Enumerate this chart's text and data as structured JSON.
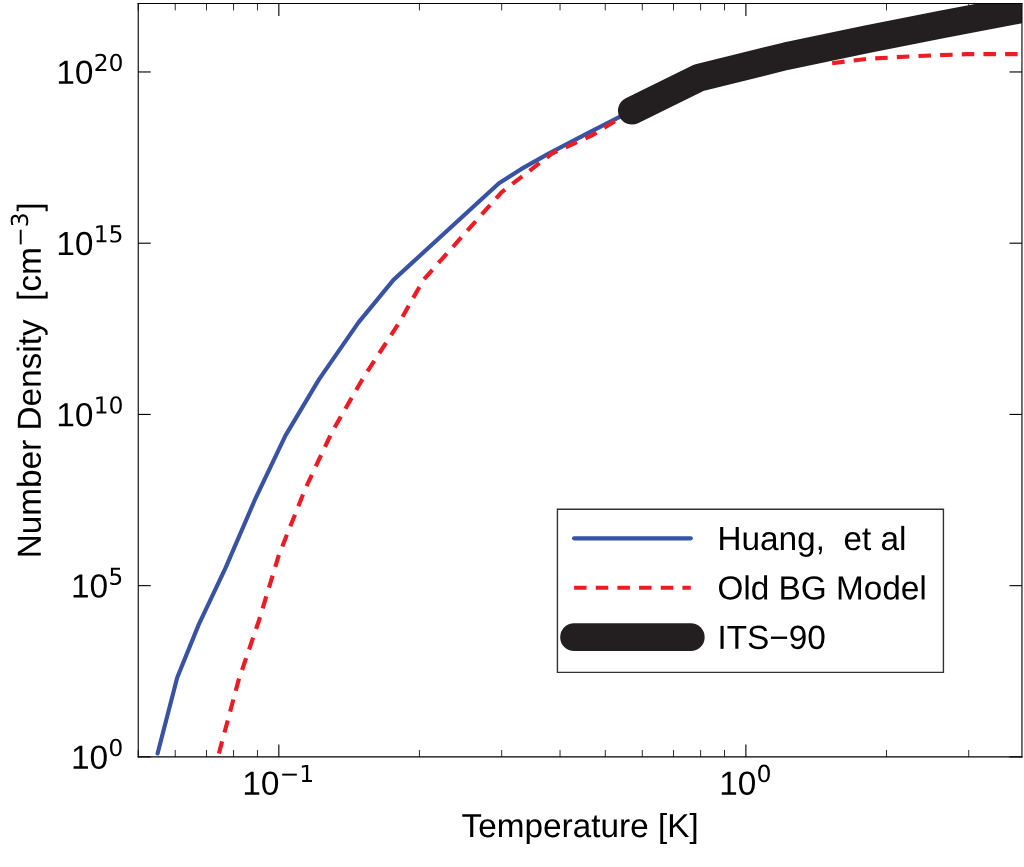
{
  "chart_data": {
    "type": "line",
    "xlabel": "Temperature [K]",
    "ylabel": "Number Density  [cm$^{−3}$]",
    "log": "xy",
    "xlim": [
      0.05,
      3.9
    ],
    "ylim": [
      1,
      1e+22
    ],
    "xticks": [
      {
        "value": 0.1,
        "label": "10$^{−1}$"
      },
      {
        "value": 1,
        "label": "10$^{0}$"
      }
    ],
    "yticks": [
      {
        "value": 1,
        "label": "10$^{0}$"
      },
      {
        "value": 100000,
        "label": "10$^{5}$"
      },
      {
        "value": 10000000000.0,
        "label": "10$^{10}$"
      },
      {
        "value": 1000000000000000.0,
        "label": "10$^{15}$"
      },
      {
        "value": 1e+20,
        "label": "10$^{20}$"
      }
    ],
    "grid": false,
    "legend": "bottom right",
    "series": [
      {
        "name": "Huang,  et al",
        "color": "#3953a4",
        "line_style": "solid",
        "x": [
          0.055,
          0.0606,
          0.0674,
          0.0769,
          0.0891,
          0.1033,
          0.122,
          0.148,
          0.176,
          0.296,
          0.33,
          0.379,
          0.461,
          0.542
        ],
        "values": [
          1.26,
          209,
          7400,
          330000.0,
          35000000.0,
          2400000000.0,
          107000000000.0,
          4800000000000.0,
          85000000000000.0,
          5.6e+16,
          1.45e+17,
          4.2e+17,
          1.7e+18,
          5.2e+18
        ]
      },
      {
        "name": "Old BG Model",
        "color": "#ed1c24",
        "line_style": "dashed",
        "x": [
          0.0744,
          0.082,
          0.0906,
          0.1,
          0.114,
          0.13,
          0.151,
          0.181,
          0.204,
          0.3,
          0.385,
          0.468,
          0.527,
          1.0,
          1.53,
          1.81,
          2.31,
          2.96,
          3.9
        ],
        "values": [
          1.26,
          174,
          9300,
          780000.0,
          69000000.0,
          3100000000.0,
          107000000000.0,
          4800000000000.0,
          85000000000000.0,
          3.1e+16,
          4.2e+17,
          1.4e+18,
          3.8e+18,
          null,
          1.8e+20,
          2.4e+20,
          2.9e+20,
          3.3e+20,
          3.3e+20
        ]
      },
      {
        "name": "ITS−90",
        "color": "#231f20",
        "line_style": "solid",
        "x": [
          0.57,
          0.793,
          1.22,
          1.81,
          2.63,
          3.9
        ],
        "values": [
          7.4e+18,
          6.8e+19,
          2.9e+20,
          8.9e+20,
          2.45e+21,
          6.8e+21
        ]
      }
    ]
  }
}
